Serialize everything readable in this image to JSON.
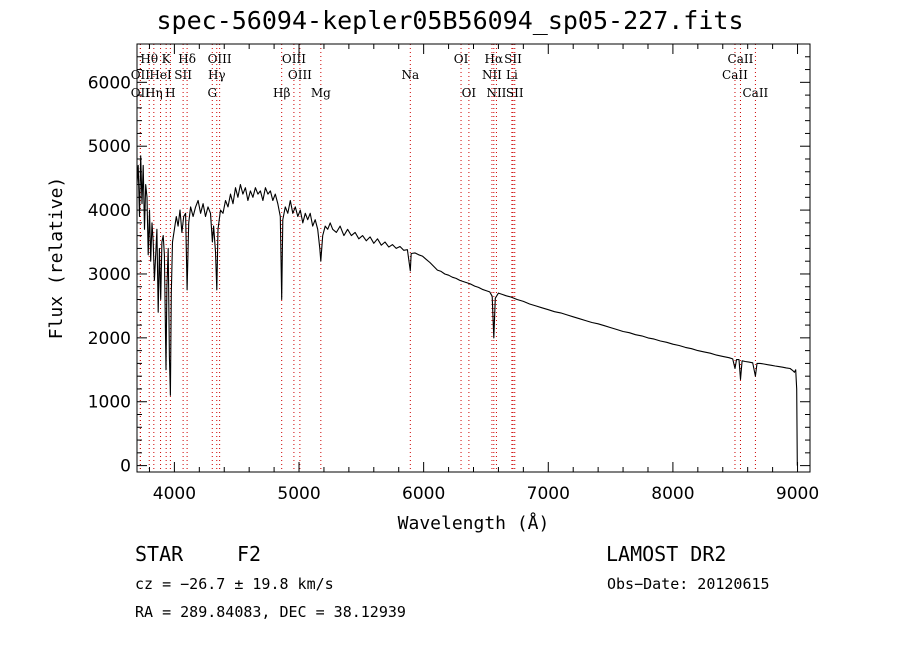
{
  "chart_data": {
    "type": "line",
    "title": "spec-56094-kepler05B56094_sp05-227.fits",
    "xlabel": "Wavelength (Å)",
    "ylabel": "Flux (relative)",
    "xlim": [
      3700,
      9100
    ],
    "ylim": [
      -100,
      6600
    ],
    "xticks": [
      4000,
      5000,
      6000,
      7000,
      8000,
      9000
    ],
    "yticks": [
      0,
      1000,
      2000,
      3000,
      4000,
      5000,
      6000
    ],
    "grid": false,
    "series": [
      {
        "points": [
          [
            3700,
            4400
          ],
          [
            3710,
            4700
          ],
          [
            3720,
            3900
          ],
          [
            3730,
            4850
          ],
          [
            3740,
            4100
          ],
          [
            3750,
            4700
          ],
          [
            3760,
            3700
          ],
          [
            3770,
            4400
          ],
          [
            3780,
            4200
          ],
          [
            3790,
            3300
          ],
          [
            3800,
            4000
          ],
          [
            3810,
            3200
          ],
          [
            3820,
            3800
          ],
          [
            3830,
            3500
          ],
          [
            3840,
            2900
          ],
          [
            3850,
            3300
          ],
          [
            3860,
            3700
          ],
          [
            3870,
            2400
          ],
          [
            3880,
            3400
          ],
          [
            3890,
            2600
          ],
          [
            3900,
            3500
          ],
          [
            3910,
            3600
          ],
          [
            3920,
            3300
          ],
          [
            3933,
            1500
          ],
          [
            3940,
            2800
          ],
          [
            3950,
            3400
          ],
          [
            3960,
            1700
          ],
          [
            3968,
            1100
          ],
          [
            3975,
            2700
          ],
          [
            3985,
            3500
          ],
          [
            4000,
            3700
          ],
          [
            4015,
            3900
          ],
          [
            4030,
            3750
          ],
          [
            4045,
            4000
          ],
          [
            4060,
            3650
          ],
          [
            4075,
            3900
          ],
          [
            4090,
            3950
          ],
          [
            4102,
            2750
          ],
          [
            4115,
            3800
          ],
          [
            4130,
            4050
          ],
          [
            4150,
            3900
          ],
          [
            4170,
            4050
          ],
          [
            4190,
            4150
          ],
          [
            4210,
            3950
          ],
          [
            4230,
            4100
          ],
          [
            4250,
            3900
          ],
          [
            4270,
            4050
          ],
          [
            4290,
            3950
          ],
          [
            4305,
            3500
          ],
          [
            4315,
            3750
          ],
          [
            4330,
            3350
          ],
          [
            4340,
            2750
          ],
          [
            4350,
            3700
          ],
          [
            4370,
            4000
          ],
          [
            4390,
            3950
          ],
          [
            4410,
            4150
          ],
          [
            4430,
            4050
          ],
          [
            4450,
            4250
          ],
          [
            4470,
            4100
          ],
          [
            4490,
            4350
          ],
          [
            4510,
            4200
          ],
          [
            4530,
            4400
          ],
          [
            4550,
            4250
          ],
          [
            4570,
            4350
          ],
          [
            4590,
            4150
          ],
          [
            4610,
            4300
          ],
          [
            4630,
            4200
          ],
          [
            4650,
            4350
          ],
          [
            4670,
            4250
          ],
          [
            4690,
            4300
          ],
          [
            4710,
            4150
          ],
          [
            4730,
            4350
          ],
          [
            4750,
            4250
          ],
          [
            4770,
            4300
          ],
          [
            4790,
            4150
          ],
          [
            4810,
            4250
          ],
          [
            4830,
            4100
          ],
          [
            4850,
            3900
          ],
          [
            4861,
            2600
          ],
          [
            4870,
            3850
          ],
          [
            4890,
            4050
          ],
          [
            4910,
            3950
          ],
          [
            4930,
            4150
          ],
          [
            4950,
            3950
          ],
          [
            4970,
            4050
          ],
          [
            4990,
            3900
          ],
          [
            5010,
            4000
          ],
          [
            5030,
            3800
          ],
          [
            5050,
            3950
          ],
          [
            5070,
            3850
          ],
          [
            5090,
            3950
          ],
          [
            5110,
            3750
          ],
          [
            5130,
            3850
          ],
          [
            5150,
            3700
          ],
          [
            5167,
            3400
          ],
          [
            5175,
            3200
          ],
          [
            5190,
            3600
          ],
          [
            5210,
            3750
          ],
          [
            5230,
            3700
          ],
          [
            5250,
            3800
          ],
          [
            5270,
            3700
          ],
          [
            5300,
            3650
          ],
          [
            5330,
            3750
          ],
          [
            5360,
            3600
          ],
          [
            5390,
            3700
          ],
          [
            5420,
            3600
          ],
          [
            5450,
            3650
          ],
          [
            5480,
            3550
          ],
          [
            5510,
            3600
          ],
          [
            5540,
            3520
          ],
          [
            5570,
            3580
          ],
          [
            5600,
            3480
          ],
          [
            5630,
            3550
          ],
          [
            5660,
            3450
          ],
          [
            5690,
            3500
          ],
          [
            5720,
            3420
          ],
          [
            5750,
            3460
          ],
          [
            5780,
            3400
          ],
          [
            5810,
            3430
          ],
          [
            5840,
            3370
          ],
          [
            5870,
            3380
          ],
          [
            5893,
            3050
          ],
          [
            5900,
            3320
          ],
          [
            5930,
            3330
          ],
          [
            5960,
            3300
          ],
          [
            5990,
            3280
          ],
          [
            6020,
            3230
          ],
          [
            6050,
            3180
          ],
          [
            6080,
            3120
          ],
          [
            6110,
            3060
          ],
          [
            6140,
            3040
          ],
          [
            6170,
            3000
          ],
          [
            6200,
            2980
          ],
          [
            6230,
            2950
          ],
          [
            6260,
            2930
          ],
          [
            6290,
            2900
          ],
          [
            6320,
            2880
          ],
          [
            6350,
            2860
          ],
          [
            6380,
            2840
          ],
          [
            6410,
            2810
          ],
          [
            6440,
            2790
          ],
          [
            6470,
            2760
          ],
          [
            6500,
            2740
          ],
          [
            6530,
            2720
          ],
          [
            6550,
            2650
          ],
          [
            6563,
            2000
          ],
          [
            6575,
            2620
          ],
          [
            6600,
            2700
          ],
          [
            6630,
            2680
          ],
          [
            6660,
            2660
          ],
          [
            6700,
            2640
          ],
          [
            6750,
            2600
          ],
          [
            6800,
            2570
          ],
          [
            6850,
            2530
          ],
          [
            6900,
            2500
          ],
          [
            6950,
            2470
          ],
          [
            7000,
            2440
          ],
          [
            7050,
            2410
          ],
          [
            7100,
            2390
          ],
          [
            7150,
            2360
          ],
          [
            7200,
            2330
          ],
          [
            7250,
            2300
          ],
          [
            7300,
            2270
          ],
          [
            7350,
            2240
          ],
          [
            7400,
            2220
          ],
          [
            7450,
            2190
          ],
          [
            7500,
            2160
          ],
          [
            7550,
            2130
          ],
          [
            7600,
            2100
          ],
          [
            7650,
            2080
          ],
          [
            7700,
            2050
          ],
          [
            7750,
            2030
          ],
          [
            7800,
            2000
          ],
          [
            7850,
            1980
          ],
          [
            7900,
            1950
          ],
          [
            7950,
            1930
          ],
          [
            8000,
            1900
          ],
          [
            8050,
            1880
          ],
          [
            8100,
            1850
          ],
          [
            8150,
            1830
          ],
          [
            8200,
            1800
          ],
          [
            8250,
            1780
          ],
          [
            8300,
            1760
          ],
          [
            8350,
            1730
          ],
          [
            8400,
            1710
          ],
          [
            8450,
            1690
          ],
          [
            8480,
            1670
          ],
          [
            8498,
            1520
          ],
          [
            8510,
            1660
          ],
          [
            8530,
            1660
          ],
          [
            8542,
            1350
          ],
          [
            8555,
            1640
          ],
          [
            8580,
            1630
          ],
          [
            8610,
            1620
          ],
          [
            8640,
            1610
          ],
          [
            8662,
            1400
          ],
          [
            8675,
            1600
          ],
          [
            8700,
            1600
          ],
          [
            8730,
            1590
          ],
          [
            8760,
            1580
          ],
          [
            8790,
            1570
          ],
          [
            8820,
            1560
          ],
          [
            8850,
            1550
          ],
          [
            8880,
            1540
          ],
          [
            8910,
            1530
          ],
          [
            8940,
            1520
          ],
          [
            8960,
            1490
          ],
          [
            8975,
            1460
          ],
          [
            8985,
            1500
          ],
          [
            8993,
            1200
          ],
          [
            8998,
            0
          ]
        ]
      }
    ],
    "line_annotations": [
      {
        "label": "Hθ",
        "x": 3798,
        "row": 1,
        "color": "#000000"
      },
      {
        "label": "K",
        "x": 3934,
        "row": 1,
        "color": "#000000"
      },
      {
        "label": "Hδ",
        "x": 4102,
        "row": 1,
        "color": "#000000"
      },
      {
        "label": "OIII",
        "x": 4363,
        "row": 1,
        "color": "#000000"
      },
      {
        "label": "OIII",
        "x": 4959,
        "row": 1,
        "color": "#000000"
      },
      {
        "label": "OI",
        "x": 6300,
        "row": 1,
        "color": "#000000"
      },
      {
        "label": "Hα",
        "x": 6563,
        "row": 1,
        "color": "#000000"
      },
      {
        "label": "SII",
        "x": 6717,
        "row": 1,
        "color": "#000000"
      },
      {
        "label": "CaII",
        "x": 8542,
        "row": 1,
        "color": "#000000"
      },
      {
        "label": "OII",
        "x": 3727,
        "row": 2,
        "color": "#000000"
      },
      {
        "label": "HeI",
        "x": 3889,
        "row": 2,
        "color": "#000000"
      },
      {
        "label": "SII",
        "x": 4070,
        "row": 2,
        "color": "#000000"
      },
      {
        "label": "Hγ",
        "x": 4340,
        "row": 2,
        "color": "#000000"
      },
      {
        "label": "OIII",
        "x": 5007,
        "row": 2,
        "color": "#000000"
      },
      {
        "label": "Na",
        "x": 5893,
        "row": 2,
        "color": "#000000"
      },
      {
        "label": "NII",
        "x": 6548,
        "row": 2,
        "color": "#000000"
      },
      {
        "label": "Li",
        "x": 6708,
        "row": 2,
        "color": "#000000"
      },
      {
        "label": "CaII",
        "x": 8498,
        "row": 2,
        "color": "#000000"
      },
      {
        "label": "OII",
        "x": 3727,
        "row": 3,
        "color": "#000000"
      },
      {
        "label": "Hη",
        "x": 3835,
        "row": 3,
        "color": "#000000"
      },
      {
        "label": "H",
        "x": 3968,
        "row": 3,
        "color": "#000000"
      },
      {
        "label": "G",
        "x": 4304,
        "row": 3,
        "color": "#000000"
      },
      {
        "label": "Hβ",
        "x": 4861,
        "row": 3,
        "color": "#000000"
      },
      {
        "label": "Mg",
        "x": 5175,
        "row": 3,
        "color": "#000000"
      },
      {
        "label": "OI",
        "x": 6363,
        "row": 3,
        "color": "#000000"
      },
      {
        "label": "NII",
        "x": 6584,
        "row": 3,
        "color": "#000000"
      },
      {
        "label": "SII",
        "x": 6731,
        "row": 3,
        "color": "#000000"
      },
      {
        "label": "CaII",
        "x": 8662,
        "row": 3,
        "color": "#000000"
      }
    ],
    "marker_line_color": "#cc0000"
  },
  "footer": {
    "object_class": "STAR",
    "subclass": "F2",
    "survey": "LAMOST DR2",
    "cz": "cz = −26.7 ± 19.8 km/s",
    "obs_date": "Obs−Date: 20120615",
    "coords": "RA = 289.84083, DEC =  38.12939"
  }
}
